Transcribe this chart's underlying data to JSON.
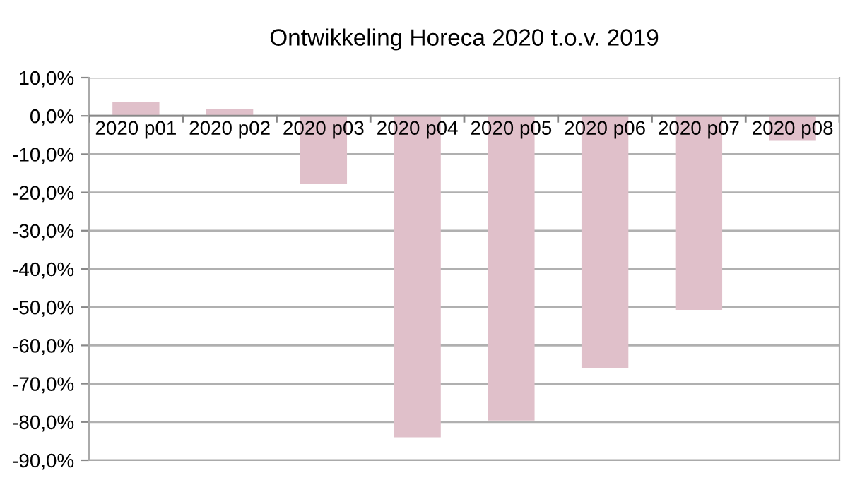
{
  "chart_data": {
    "type": "bar",
    "title": "Ontwikkeling Horeca 2020 t.o.v. 2019",
    "categories": [
      "2020 p01",
      "2020 p02",
      "2020 p03",
      "2020 p04",
      "2020 p05",
      "2020 p06",
      "2020 p07",
      "2020 p08"
    ],
    "values": [
      3.7,
      1.9,
      -17.7,
      -84.0,
      -79.6,
      -66.0,
      -50.7,
      -6.5
    ],
    "color": "#e0c0ca",
    "ylim": [
      -90,
      10
    ],
    "yticks": [
      {
        "value": 10,
        "label": "10,0%"
      },
      {
        "value": 0,
        "label": "0,0%"
      },
      {
        "value": -10,
        "label": "-10,0%"
      },
      {
        "value": -20,
        "label": "-20,0%"
      },
      {
        "value": -30,
        "label": "-30,0%"
      },
      {
        "value": -40,
        "label": "-40,0%"
      },
      {
        "value": -50,
        "label": "-50,0%"
      },
      {
        "value": -60,
        "label": "-60,0%"
      },
      {
        "value": -70,
        "label": "-70,0%"
      },
      {
        "value": -80,
        "label": "-80,0%"
      },
      {
        "value": -90,
        "label": "-90,0%"
      }
    ],
    "grid": "y"
  }
}
